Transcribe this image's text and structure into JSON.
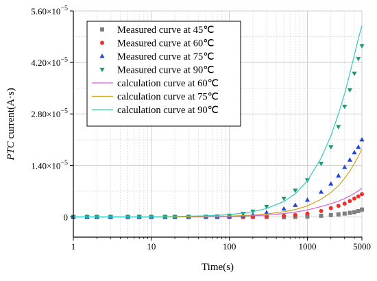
{
  "chart_data": {
    "type": "scatter",
    "title": "",
    "xlabel": "Time(s)",
    "ylabel_italic": "PTC",
    "ylabel_rest": " current(A·s)",
    "x_scale": "log",
    "xlim": [
      1,
      5000
    ],
    "ylim": [
      -5.5e-06,
      5.6e-05
    ],
    "x_ticks": [
      1,
      10,
      100,
      1000,
      5000
    ],
    "x_tick_labels": [
      "1",
      "10",
      "100",
      "1000",
      "5000"
    ],
    "y_ticks": [
      0,
      1.4e-05,
      2.8e-05,
      4.2e-05,
      5.6e-05
    ],
    "y_tick_mantissa": [
      "0",
      "1.40",
      "2.80",
      "4.20",
      "5.60"
    ],
    "y_tick_base": "×10",
    "y_tick_exponent": "−5",
    "grid": true,
    "legend_position": "upper-left",
    "series": [
      {
        "name": "Measured curve at 45℃",
        "kind": "measured",
        "marker": "square",
        "color": "#7f7f7f",
        "x": [
          1,
          1.5,
          2,
          3,
          5,
          7,
          10,
          15,
          20,
          30,
          50,
          70,
          100,
          150,
          200,
          300,
          500,
          700,
          1000,
          1500,
          2000,
          2500,
          3000,
          3500,
          4000,
          4500,
          5000
        ],
        "y": [
          0,
          0,
          0,
          0,
          0,
          0,
          0,
          0,
          0,
          0,
          0,
          0,
          0,
          0,
          0,
          0,
          -1e-07,
          0,
          1e-07,
          3e-07,
          5e-07,
          7e-07,
          9e-07,
          1.1e-06,
          1.3e-06,
          1.6e-06,
          2e-06
        ]
      },
      {
        "name": "Measured curve at 60℃",
        "kind": "measured",
        "marker": "circle",
        "color": "#e8312f",
        "x": [
          1,
          1.5,
          2,
          3,
          5,
          7,
          10,
          15,
          20,
          30,
          50,
          70,
          100,
          150,
          200,
          300,
          500,
          700,
          1000,
          1500,
          2000,
          2500,
          3000,
          3500,
          4000,
          4500,
          5000
        ],
        "y": [
          0,
          0,
          0,
          0,
          0,
          0,
          0,
          0,
          0,
          0,
          0,
          0,
          0,
          0,
          0,
          1e-07,
          3e-07,
          5e-07,
          9e-07,
          1.6e-06,
          2.4e-06,
          3e-06,
          3.6e-06,
          4.3e-06,
          5e-06,
          5.6e-06,
          6.2e-06
        ]
      },
      {
        "name": "Measured curve at 75℃",
        "kind": "measured",
        "marker": "triangle-up",
        "color": "#2446d6",
        "x": [
          1,
          1.5,
          2,
          3,
          5,
          7,
          10,
          15,
          20,
          30,
          50,
          70,
          100,
          150,
          200,
          300,
          500,
          700,
          1000,
          1500,
          2000,
          2500,
          3000,
          3500,
          4000,
          4500,
          5000
        ],
        "y": [
          0,
          0,
          0,
          0,
          0,
          0,
          0,
          0,
          0,
          0,
          0,
          0,
          1e-07,
          3e-07,
          6e-07,
          1.2e-06,
          2.2e-06,
          3.2e-06,
          4.6e-06,
          6.8e-06,
          9e-06,
          1.12e-05,
          1.35e-05,
          1.55e-05,
          1.75e-05,
          1.9e-05,
          2.1e-05
        ]
      },
      {
        "name": "Measured curve at 90℃",
        "kind": "measured",
        "marker": "triangle-down",
        "color": "#1f9a6e",
        "x": [
          1,
          1.5,
          2,
          3,
          5,
          7,
          10,
          15,
          20,
          30,
          50,
          70,
          100,
          150,
          200,
          300,
          500,
          700,
          1000,
          1500,
          2000,
          2500,
          3000,
          3500,
          4000,
          4500,
          5000
        ],
        "y": [
          0,
          0,
          0,
          0,
          0,
          0,
          0,
          0,
          0,
          0,
          1e-07,
          2e-07,
          4e-07,
          9e-07,
          1.5e-06,
          2.8e-06,
          5e-06,
          7.2e-06,
          1e-05,
          1.45e-05,
          1.9e-05,
          2.45e-05,
          3e-05,
          3.45e-05,
          3.9e-05,
          4.3e-05,
          4.65e-05
        ]
      },
      {
        "name": "calculation curve at 60℃",
        "kind": "calculated",
        "color": "#d65fd6",
        "x": [
          1,
          2,
          5,
          10,
          20,
          50,
          100,
          200,
          300,
          500,
          700,
          1000,
          1500,
          2000,
          2500,
          3000,
          3500,
          4000,
          4500,
          5000
        ],
        "y": [
          0,
          0,
          0,
          0,
          0,
          0,
          1e-07,
          3e-07,
          5e-07,
          9e-07,
          1.3e-06,
          1.9e-06,
          2.8e-06,
          3.6e-06,
          4.3e-06,
          5e-06,
          5.7e-06,
          6.4e-06,
          7.1e-06,
          7.8e-06
        ]
      },
      {
        "name": "calculation curve at 75℃",
        "kind": "calculated",
        "color": "#c9a21a",
        "x": [
          1,
          2,
          5,
          10,
          20,
          50,
          100,
          200,
          300,
          500,
          700,
          1000,
          1500,
          2000,
          2500,
          3000,
          3500,
          4000,
          4500,
          5000
        ],
        "y": [
          0,
          0,
          0,
          0,
          0,
          1e-07,
          2e-07,
          5e-07,
          8e-07,
          1.4e-06,
          2e-06,
          3e-06,
          4.8e-06,
          6.6e-06,
          8.5e-06,
          1.05e-05,
          1.25e-05,
          1.45e-05,
          1.65e-05,
          1.85e-05
        ]
      },
      {
        "name": "calculation curve at 90℃",
        "kind": "calculated",
        "color": "#33c7c2",
        "x": [
          1,
          2,
          5,
          10,
          20,
          50,
          100,
          200,
          300,
          500,
          700,
          1000,
          1500,
          2000,
          2500,
          3000,
          3500,
          4000,
          4500,
          5000
        ],
        "y": [
          0,
          0,
          0,
          0,
          1e-07,
          3e-07,
          6e-07,
          1.4e-06,
          2.3e-06,
          4.2e-06,
          6.3e-06,
          9.8e-06,
          1.6e-05,
          2.2e-05,
          2.8e-05,
          3.35e-05,
          3.9e-05,
          4.4e-05,
          4.85e-05,
          5.2e-05
        ]
      }
    ]
  }
}
